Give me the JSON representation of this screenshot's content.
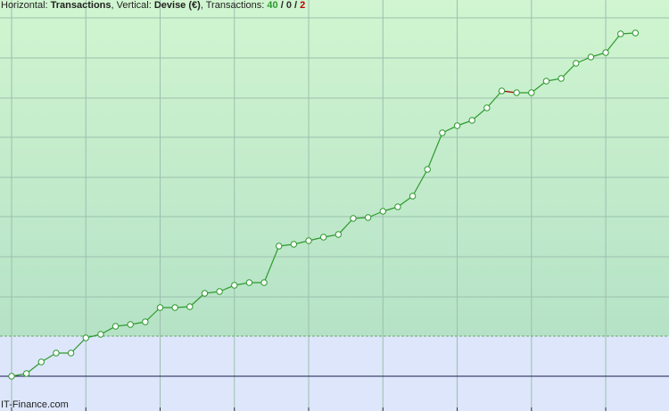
{
  "header": {
    "horizontal_label": "Horizontal:",
    "horizontal": "Transactions",
    "vertical_label": "Vertical:",
    "vertical": "Devise (€)",
    "count_label": "Transactions:",
    "wins": 40,
    "neutral": 0,
    "losses": 2
  },
  "footer": "IT-Finance.com",
  "chart_data": {
    "type": "line",
    "x": [
      0,
      1,
      2,
      3,
      4,
      5,
      6,
      7,
      8,
      9,
      10,
      11,
      12,
      13,
      14,
      15,
      16,
      17,
      18,
      19,
      20,
      21,
      22,
      23,
      24,
      25,
      26,
      27,
      28,
      29,
      30,
      31,
      32,
      33,
      34,
      35,
      36,
      37,
      38,
      39,
      40,
      41,
      42
    ],
    "series": [
      {
        "color": "#2e9a2e",
        "loss_color": "#a00000",
        "values": [
          0,
          3,
          16,
          26,
          26,
          43,
          47,
          56,
          58,
          61,
          77,
          77,
          78,
          93,
          95,
          102,
          105,
          105,
          146,
          148,
          152,
          156,
          159,
          177,
          178,
          185,
          190,
          202,
          232,
          273,
          281,
          287,
          301,
          320,
          318,
          318,
          331,
          334,
          351,
          358,
          363,
          384,
          385
        ]
      }
    ],
    "xlim": [
      -0.78,
      44.26
    ],
    "xticks": [
      0,
      5,
      10,
      15,
      20,
      25,
      30,
      35,
      40
    ],
    "ylim": [
      -39,
      422
    ],
    "yticks": [
      0,
      45,
      89,
      134,
      179,
      223,
      268,
      312,
      357,
      402
    ],
    "grid": true
  }
}
